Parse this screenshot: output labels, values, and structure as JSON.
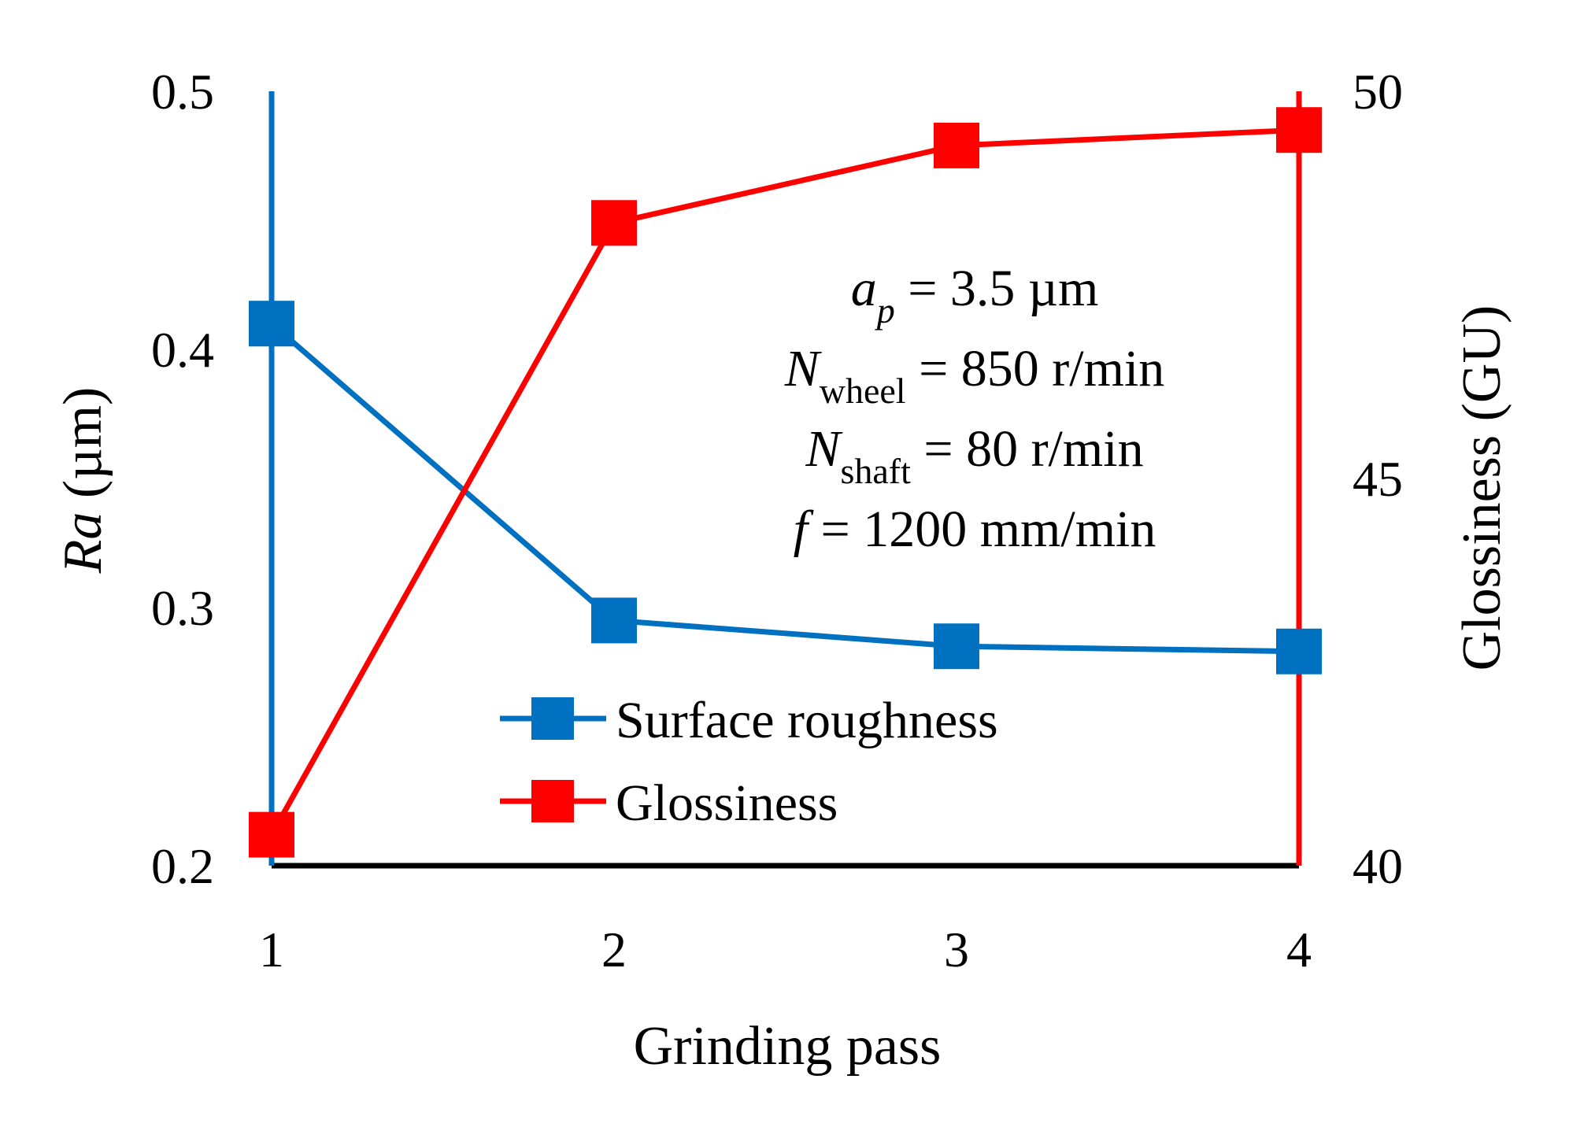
{
  "chart_data": {
    "type": "line",
    "title": "",
    "xlabel": "Grinding pass",
    "ylabel_left": {
      "italic": "Ra",
      "rest": " (µm)"
    },
    "ylabel_right": "Glossiness (GU)",
    "categories": [
      "1",
      "2",
      "3",
      "4"
    ],
    "ylim_left": [
      0.2,
      0.5
    ],
    "ylim_right": [
      40,
      50
    ],
    "yticks_left": [
      "0.2",
      "0.3",
      "0.4",
      "0.5"
    ],
    "yticks_right": [
      "40",
      "45",
      "50"
    ],
    "grid": false,
    "legend_position": "bottom-center",
    "series": [
      {
        "name": "Surface roughness",
        "axis": "left",
        "color": "#0070C0",
        "marker": "square",
        "values": [
          0.41,
          0.295,
          0.285,
          0.283
        ]
      },
      {
        "name": "Glossiness",
        "axis": "right",
        "color": "#FF0000",
        "marker": "square",
        "values": [
          40.4,
          48.3,
          49.3,
          49.5
        ]
      }
    ],
    "annotations": [
      {
        "lead": "a",
        "sub": "p",
        "rest": " = 3.5 µm",
        "lead_italic": true
      },
      {
        "lead": "N",
        "sub": "wheel",
        "rest": " = 850 r/min",
        "lead_italic": true
      },
      {
        "lead": "N",
        "sub": "shaft",
        "rest": " = 80 r/min",
        "lead_italic": true
      },
      {
        "lead": "f",
        "sub": "",
        "rest": " = 1200 mm/min",
        "lead_italic": true
      }
    ]
  }
}
